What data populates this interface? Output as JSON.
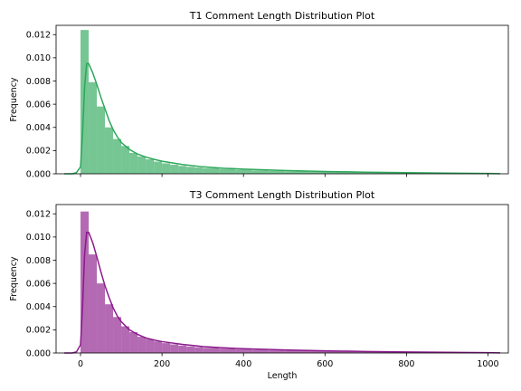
{
  "chart_data": [
    {
      "type": "bar",
      "title": "T1 Comment Length Distribution Plot",
      "xlabel": "",
      "ylabel": "Frequency",
      "color": "#2ca75a",
      "xlim": [
        -60,
        1050
      ],
      "ylim": [
        0,
        0.0128
      ],
      "x_ticks": [
        0,
        200,
        400,
        600,
        800,
        1000
      ],
      "x_tick_labels_visible": false,
      "y_ticks": [
        0.0,
        0.002,
        0.004,
        0.006,
        0.008,
        0.01,
        0.012
      ],
      "y_tick_labels": [
        "0.000",
        "0.002",
        "0.004",
        "0.006",
        "0.008",
        "0.010",
        "0.012"
      ],
      "bin_edges": [
        0,
        20,
        40,
        60,
        80,
        100,
        120,
        140,
        160,
        180,
        200,
        220,
        240,
        260,
        280,
        300,
        340,
        380,
        420,
        460,
        500,
        560,
        620,
        680,
        740,
        800,
        860,
        920,
        980,
        1030
      ],
      "bin_values": [
        0.0124,
        0.0079,
        0.0058,
        0.004,
        0.003,
        0.0024,
        0.0018,
        0.0015,
        0.00125,
        0.00105,
        0.0009,
        0.00078,
        0.00068,
        0.0006,
        0.00054,
        0.00048,
        0.0004,
        0.00034,
        0.00029,
        0.00025,
        0.00021,
        0.00017,
        0.00014,
        0.00011,
        9e-05,
        7e-05,
        6e-05,
        5e-05,
        4e-05
      ],
      "kde": [
        [
          -40,
          0.0
        ],
        [
          -20,
          0.0
        ],
        [
          -10,
          0.0001
        ],
        [
          0,
          0.0006
        ],
        [
          5,
          0.0035
        ],
        [
          10,
          0.0075
        ],
        [
          15,
          0.0095
        ],
        [
          20,
          0.0095
        ],
        [
          30,
          0.0087
        ],
        [
          40,
          0.0077
        ],
        [
          50,
          0.0066
        ],
        [
          60,
          0.0056
        ],
        [
          70,
          0.0046
        ],
        [
          80,
          0.0038
        ],
        [
          90,
          0.0032
        ],
        [
          100,
          0.0027
        ],
        [
          120,
          0.0021
        ],
        [
          140,
          0.0017
        ],
        [
          160,
          0.00145
        ],
        [
          180,
          0.00125
        ],
        [
          200,
          0.00108
        ],
        [
          250,
          0.0008
        ],
        [
          300,
          0.0006
        ],
        [
          350,
          0.00048
        ],
        [
          400,
          0.0004
        ],
        [
          500,
          0.00028
        ],
        [
          600,
          0.0002
        ],
        [
          700,
          0.00014
        ],
        [
          800,
          0.0001
        ],
        [
          900,
          6e-05
        ],
        [
          1000,
          3e-05
        ],
        [
          1030,
          1e-05
        ]
      ]
    },
    {
      "type": "bar",
      "title": "T3 Comment Length Distribution Plot",
      "xlabel": "Length",
      "ylabel": "Frequency",
      "color": "#8b1a8b",
      "xlim": [
        -60,
        1050
      ],
      "ylim": [
        0,
        0.0128
      ],
      "x_ticks": [
        0,
        200,
        400,
        600,
        800,
        1000
      ],
      "x_tick_labels": [
        "0",
        "200",
        "400",
        "600",
        "800",
        "1000"
      ],
      "y_ticks": [
        0.0,
        0.002,
        0.004,
        0.006,
        0.008,
        0.01,
        0.012
      ],
      "y_tick_labels": [
        "0.000",
        "0.002",
        "0.004",
        "0.006",
        "0.008",
        "0.010",
        "0.012"
      ],
      "bin_edges": [
        0,
        20,
        40,
        60,
        80,
        100,
        120,
        140,
        160,
        180,
        200,
        220,
        240,
        260,
        280,
        300,
        340,
        380,
        420,
        460,
        500,
        560,
        620,
        680,
        740,
        800,
        860,
        920,
        980,
        1030
      ],
      "bin_values": [
        0.0122,
        0.0085,
        0.006,
        0.0042,
        0.0031,
        0.0023,
        0.0018,
        0.0014,
        0.0012,
        0.001,
        0.00085,
        0.00074,
        0.00064,
        0.00056,
        0.0005,
        0.00045,
        0.00038,
        0.00032,
        0.00027,
        0.00023,
        0.0002,
        0.00016,
        0.00013,
        0.0001,
        8e-05,
        6e-05,
        5e-05,
        4e-05,
        3e-05
      ],
      "kde": [
        [
          -40,
          0.0
        ],
        [
          -20,
          0.0
        ],
        [
          -10,
          0.0001
        ],
        [
          0,
          0.0007
        ],
        [
          5,
          0.004
        ],
        [
          10,
          0.0085
        ],
        [
          15,
          0.0104
        ],
        [
          20,
          0.0104
        ],
        [
          30,
          0.0095
        ],
        [
          40,
          0.0083
        ],
        [
          50,
          0.007
        ],
        [
          60,
          0.0058
        ],
        [
          70,
          0.0048
        ],
        [
          80,
          0.0039
        ],
        [
          90,
          0.0032
        ],
        [
          100,
          0.0027
        ],
        [
          120,
          0.002
        ],
        [
          140,
          0.0016
        ],
        [
          160,
          0.0013
        ],
        [
          180,
          0.00112
        ],
        [
          200,
          0.00098
        ],
        [
          250,
          0.00074
        ],
        [
          300,
          0.00056
        ],
        [
          350,
          0.00045
        ],
        [
          400,
          0.00037
        ],
        [
          500,
          0.00026
        ],
        [
          600,
          0.00019
        ],
        [
          700,
          0.00013
        ],
        [
          800,
          9e-05
        ],
        [
          900,
          6e-05
        ],
        [
          1000,
          3e-05
        ],
        [
          1030,
          1e-05
        ]
      ]
    }
  ]
}
